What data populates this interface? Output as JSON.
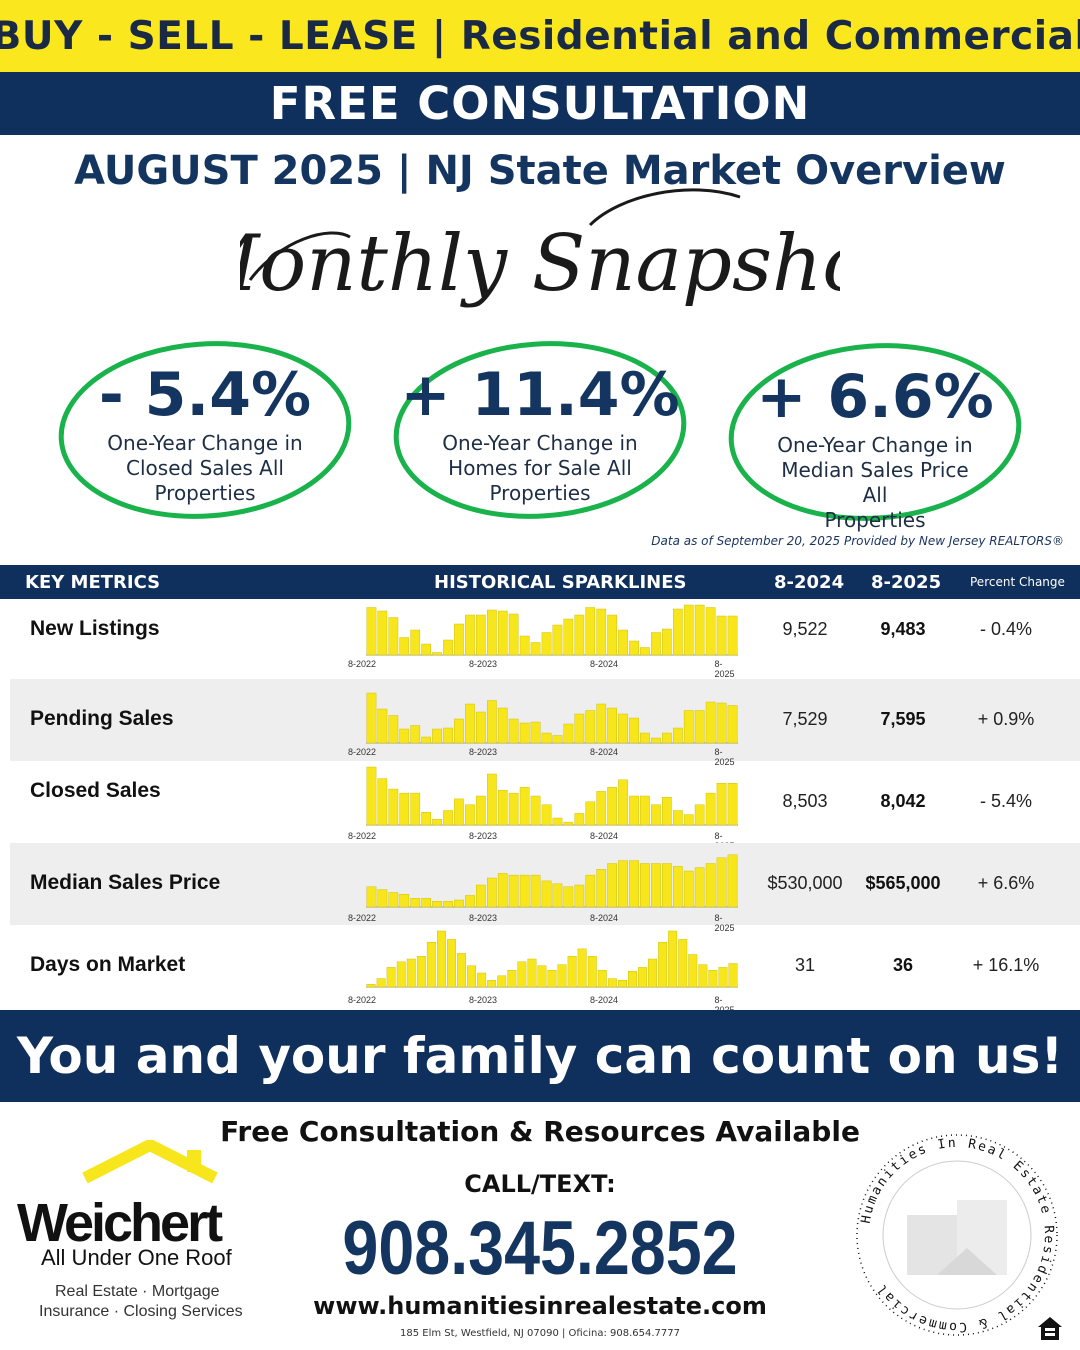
{
  "banner": {
    "top_text": "BUY - SELL - LEASE | Residential and Commercial",
    "consultation": "FREE CONSULTATION"
  },
  "overview_title": "AUGUST 2025 | NJ State Market Overview",
  "script_title": "Monthly Snapshot",
  "stats": [
    {
      "value": "- 5.4%",
      "line1": "One-Year Change in",
      "line2": "Closed Sales All",
      "line3": "Properties"
    },
    {
      "value": "+ 11.4%",
      "line1": "One-Year Change in",
      "line2": "Homes for Sale All",
      "line3": "Properties"
    },
    {
      "value": "+ 6.6%",
      "line1": "One-Year Change in",
      "line2": "Median Sales Price All",
      "line3": "Properties"
    }
  ],
  "source_note": "Data as of September 20, 2025 Provided by New Jersey REALTORS®",
  "table": {
    "headers": {
      "metrics": "KEY METRICS",
      "sparklines": "HISTORICAL SPARKLINES",
      "prev": "8-2024",
      "curr": "8-2025",
      "pct": "Percent Change"
    },
    "tick_labels": [
      "8-2022",
      "8-2023",
      "8-2024",
      "8-2025"
    ],
    "rows": [
      {
        "name": "New Listings",
        "prev": "9,522",
        "curr": "9,483",
        "pct": "- 0.4%",
        "spark": [
          0.95,
          0.88,
          0.75,
          0.35,
          0.5,
          0.22,
          0.05,
          0.3,
          0.62,
          0.8,
          0.8,
          0.9,
          0.88,
          0.82,
          0.38,
          0.25,
          0.45,
          0.6,
          0.72,
          0.8,
          0.95,
          0.92,
          0.8,
          0.5,
          0.28,
          0.15,
          0.45,
          0.52,
          0.92,
          1.0,
          1.0,
          0.95,
          0.78,
          0.78
        ]
      },
      {
        "name": "Pending Sales",
        "prev": "7,529",
        "curr": "7,595",
        "pct": "+ 0.9%",
        "spark": [
          1.0,
          0.68,
          0.55,
          0.28,
          0.35,
          0.12,
          0.28,
          0.3,
          0.48,
          0.78,
          0.62,
          0.85,
          0.7,
          0.48,
          0.4,
          0.42,
          0.2,
          0.15,
          0.38,
          0.58,
          0.65,
          0.78,
          0.7,
          0.58,
          0.5,
          0.2,
          0.1,
          0.2,
          0.3,
          0.65,
          0.65,
          0.82,
          0.8,
          0.75
        ]
      },
      {
        "name": "Closed Sales",
        "prev": "8,503",
        "curr": "8,042",
        "pct": "- 5.4%",
        "spark": [
          1.0,
          0.8,
          0.62,
          0.55,
          0.55,
          0.22,
          0.1,
          0.25,
          0.45,
          0.35,
          0.5,
          0.88,
          0.6,
          0.55,
          0.65,
          0.5,
          0.35,
          0.12,
          0.05,
          0.2,
          0.4,
          0.58,
          0.65,
          0.78,
          0.5,
          0.5,
          0.35,
          0.48,
          0.25,
          0.18,
          0.35,
          0.55,
          0.72,
          0.72
        ]
      },
      {
        "name": "Median Sales Price",
        "prev": "$530,000",
        "curr": "$565,000",
        "pct": "+ 6.6%",
        "spark": [
          0.35,
          0.3,
          0.25,
          0.22,
          0.15,
          0.15,
          0.1,
          0.1,
          0.12,
          0.2,
          0.38,
          0.5,
          0.58,
          0.55,
          0.55,
          0.55,
          0.45,
          0.4,
          0.35,
          0.38,
          0.55,
          0.65,
          0.75,
          0.8,
          0.8,
          0.75,
          0.75,
          0.75,
          0.7,
          0.62,
          0.68,
          0.75,
          0.85,
          0.9
        ]
      },
      {
        "name": "Days on Market",
        "prev": "31",
        "curr": "36",
        "pct": "+ 16.1%",
        "spark": [
          0.05,
          0.15,
          0.35,
          0.45,
          0.5,
          0.55,
          0.8,
          1.0,
          0.85,
          0.6,
          0.38,
          0.25,
          0.12,
          0.2,
          0.3,
          0.45,
          0.5,
          0.38,
          0.3,
          0.4,
          0.55,
          0.68,
          0.55,
          0.3,
          0.15,
          0.12,
          0.28,
          0.35,
          0.5,
          0.8,
          1.0,
          0.85,
          0.58,
          0.4,
          0.3,
          0.35,
          0.42
        ]
      }
    ]
  },
  "tagline": "You and your family can count on us!",
  "footer": {
    "resources": "Free Consultation & Resources Available",
    "call_label": "CALL/TEXT:",
    "phone": "908.345.2852",
    "website": "www.humanitiesinrealestate.com",
    "address": "185 Elm St, Westfield, NJ 07090 | Oficina: 908.654.7777"
  },
  "logo": {
    "brand": "Weichert",
    "tagline": "All Under One Roof",
    "services1": "Real Estate · Mortgage",
    "services2": "Insurance · Closing Services"
  },
  "seal_text": "Humanities In Real Estate Residential & Commercial",
  "colors": {
    "navy": "#0f2f5c",
    "yellow": "#fbe71e",
    "green": "#19b24b",
    "spark": "#f7e61c"
  }
}
